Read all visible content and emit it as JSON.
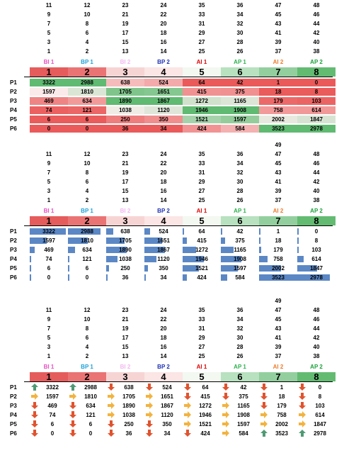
{
  "stack_top": [
    [
      11,
      9,
      7,
      5,
      3,
      1
    ],
    [
      12,
      10,
      8,
      6,
      4,
      2
    ],
    [
      23,
      21,
      19,
      17,
      15,
      13
    ],
    [
      24,
      22,
      20,
      18,
      16,
      14
    ],
    [
      35,
      33,
      31,
      29,
      27,
      25
    ],
    [
      36,
      34,
      32,
      30,
      28,
      26
    ],
    [
      49,
      47,
      45,
      43,
      41,
      39,
      37
    ],
    [
      48,
      46,
      44,
      42,
      40,
      38
    ]
  ],
  "series_labels": [
    {
      "text": "BI 1",
      "color": "#e84fc0"
    },
    {
      "text": "BP 1",
      "color": "#1ba2d8"
    },
    {
      "text": "BI 2",
      "color": "#f3b7f0"
    },
    {
      "text": "BP 2",
      "color": "#1c2fb2"
    },
    {
      "text": "AI 1",
      "color": "#e00000"
    },
    {
      "text": "AP 1",
      "color": "#2bb24c"
    },
    {
      "text": "AI 2",
      "color": "#ef7b2a"
    },
    {
      "text": "AP 2",
      "color": "#1aa03a"
    }
  ],
  "headers": [
    "1",
    "2",
    "3",
    "4",
    "5",
    "6",
    "7",
    "8"
  ],
  "header_colors": [
    "#e55c5c",
    "#ea7474",
    "#f7d4d4",
    "#fbe5e5",
    "#f3f8f0",
    "#b8e1bf",
    "#93cf9e",
    "#63bb72"
  ],
  "rows": [
    "P1",
    "P2",
    "P3",
    "P4",
    "P5",
    "P6"
  ],
  "values": [
    [
      3322,
      2988,
      638,
      524,
      64,
      42,
      1,
      0
    ],
    [
      1597,
      1810,
      1705,
      1651,
      415,
      375,
      18,
      8
    ],
    [
      469,
      634,
      1890,
      1867,
      1272,
      1165,
      179,
      103
    ],
    [
      74,
      121,
      1038,
      1120,
      1946,
      1908,
      758,
      614
    ],
    [
      6,
      6,
      250,
      350,
      1521,
      1597,
      2002,
      1847
    ],
    [
      0,
      0,
      36,
      34,
      424,
      584,
      3523,
      2978
    ]
  ],
  "arrows": [
    [
      "up",
      "up",
      "down",
      "down",
      "down",
      "down",
      "down",
      "down"
    ],
    [
      "right",
      "right",
      "right",
      "right",
      "down",
      "down",
      "down",
      "down"
    ],
    [
      "down",
      "down",
      "right",
      "right",
      "right",
      "right",
      "down",
      "down"
    ],
    [
      "down",
      "down",
      "right",
      "right",
      "right",
      "right",
      "right",
      "right"
    ],
    [
      "down",
      "down",
      "down",
      "down",
      "right",
      "right",
      "right",
      "right"
    ],
    [
      "down",
      "down",
      "down",
      "down",
      "down",
      "right",
      "up",
      "up"
    ]
  ]
}
